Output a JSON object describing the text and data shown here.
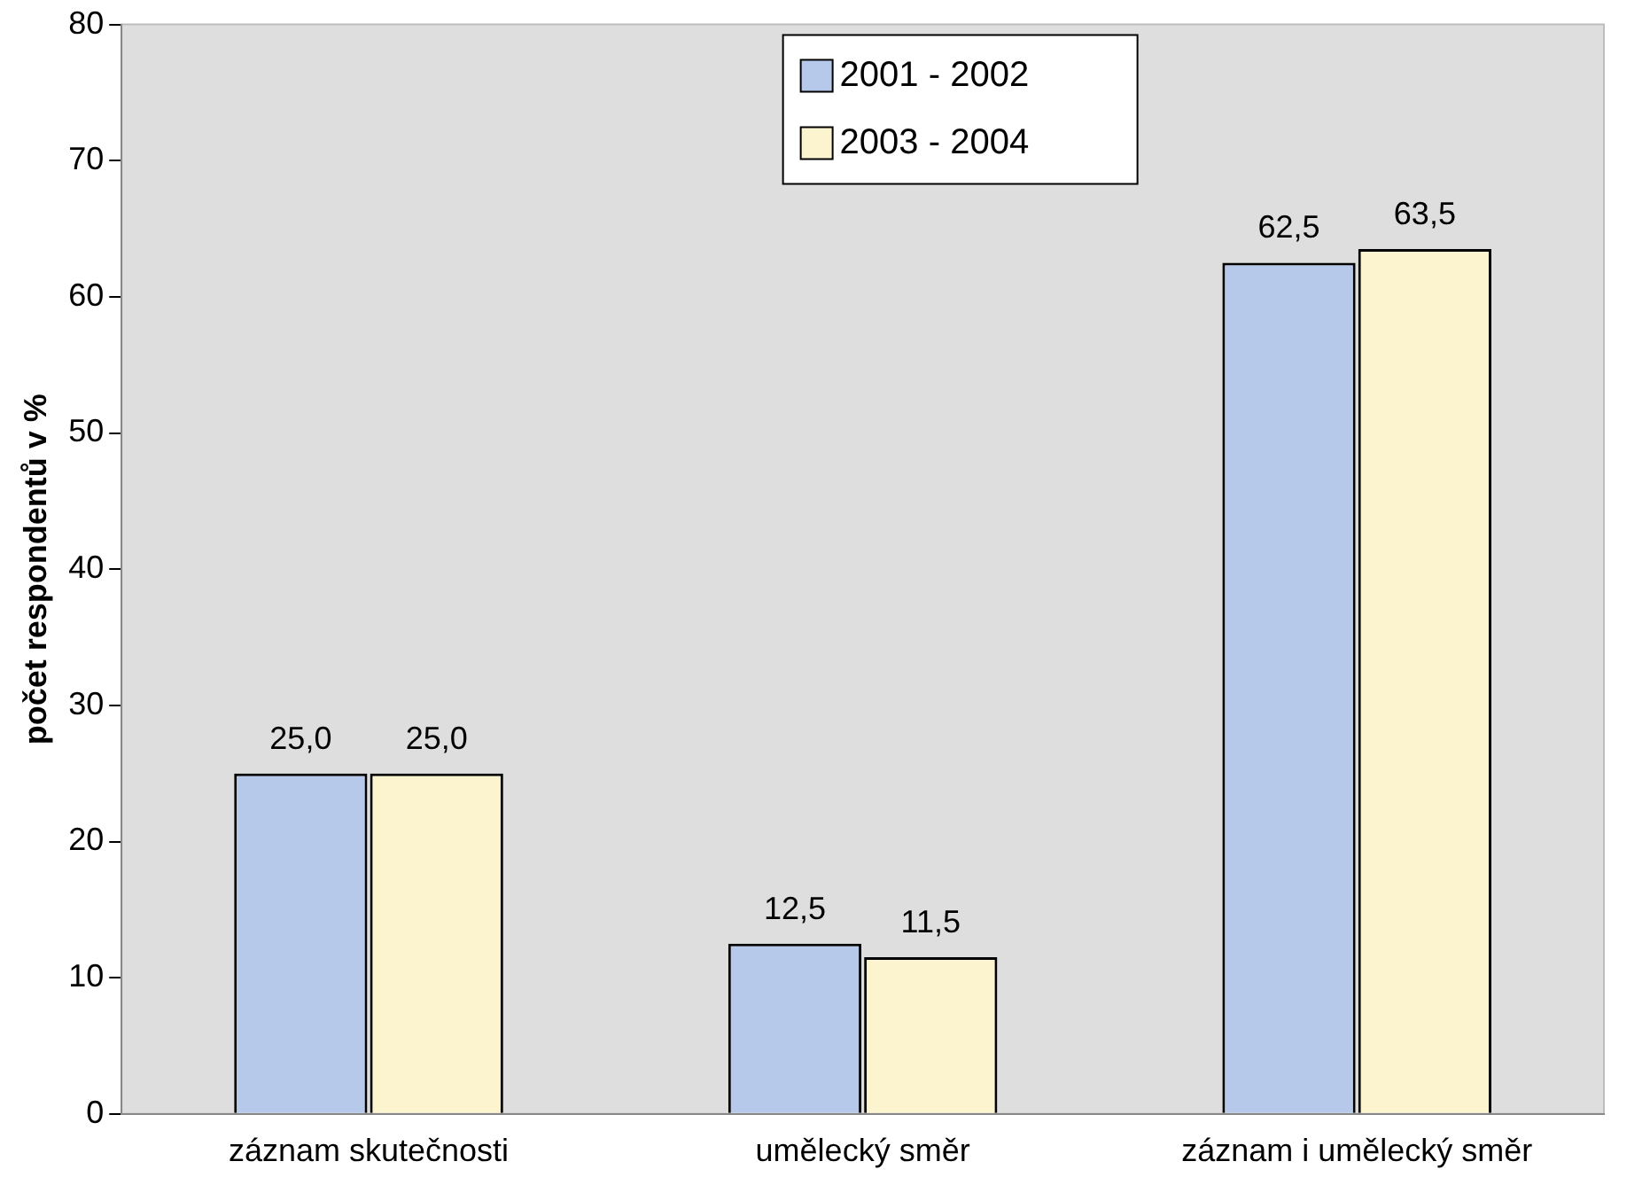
{
  "chart_data": {
    "type": "bar",
    "ylabel": "počet respondentů v %",
    "categories": [
      "záznam skutečnosti",
      "umělecký směr",
      "záznam i umělecký směr"
    ],
    "series": [
      {
        "name": "2001 - 2002",
        "color": "#b7c9ea",
        "values": [
          25,
          12.5,
          62.5
        ],
        "value_labels": [
          "25,0",
          "12,5",
          "62,5"
        ]
      },
      {
        "name": "2003 - 2004",
        "color": "#fbf4cf",
        "values": [
          25,
          11.5,
          63.5
        ],
        "value_labels": [
          "25,0",
          "11,5",
          "63,5"
        ]
      }
    ],
    "ylim": [
      0,
      80
    ],
    "yticks": [
      0,
      10,
      20,
      30,
      40,
      50,
      60,
      70,
      80
    ],
    "grid": false,
    "legend": "top"
  }
}
